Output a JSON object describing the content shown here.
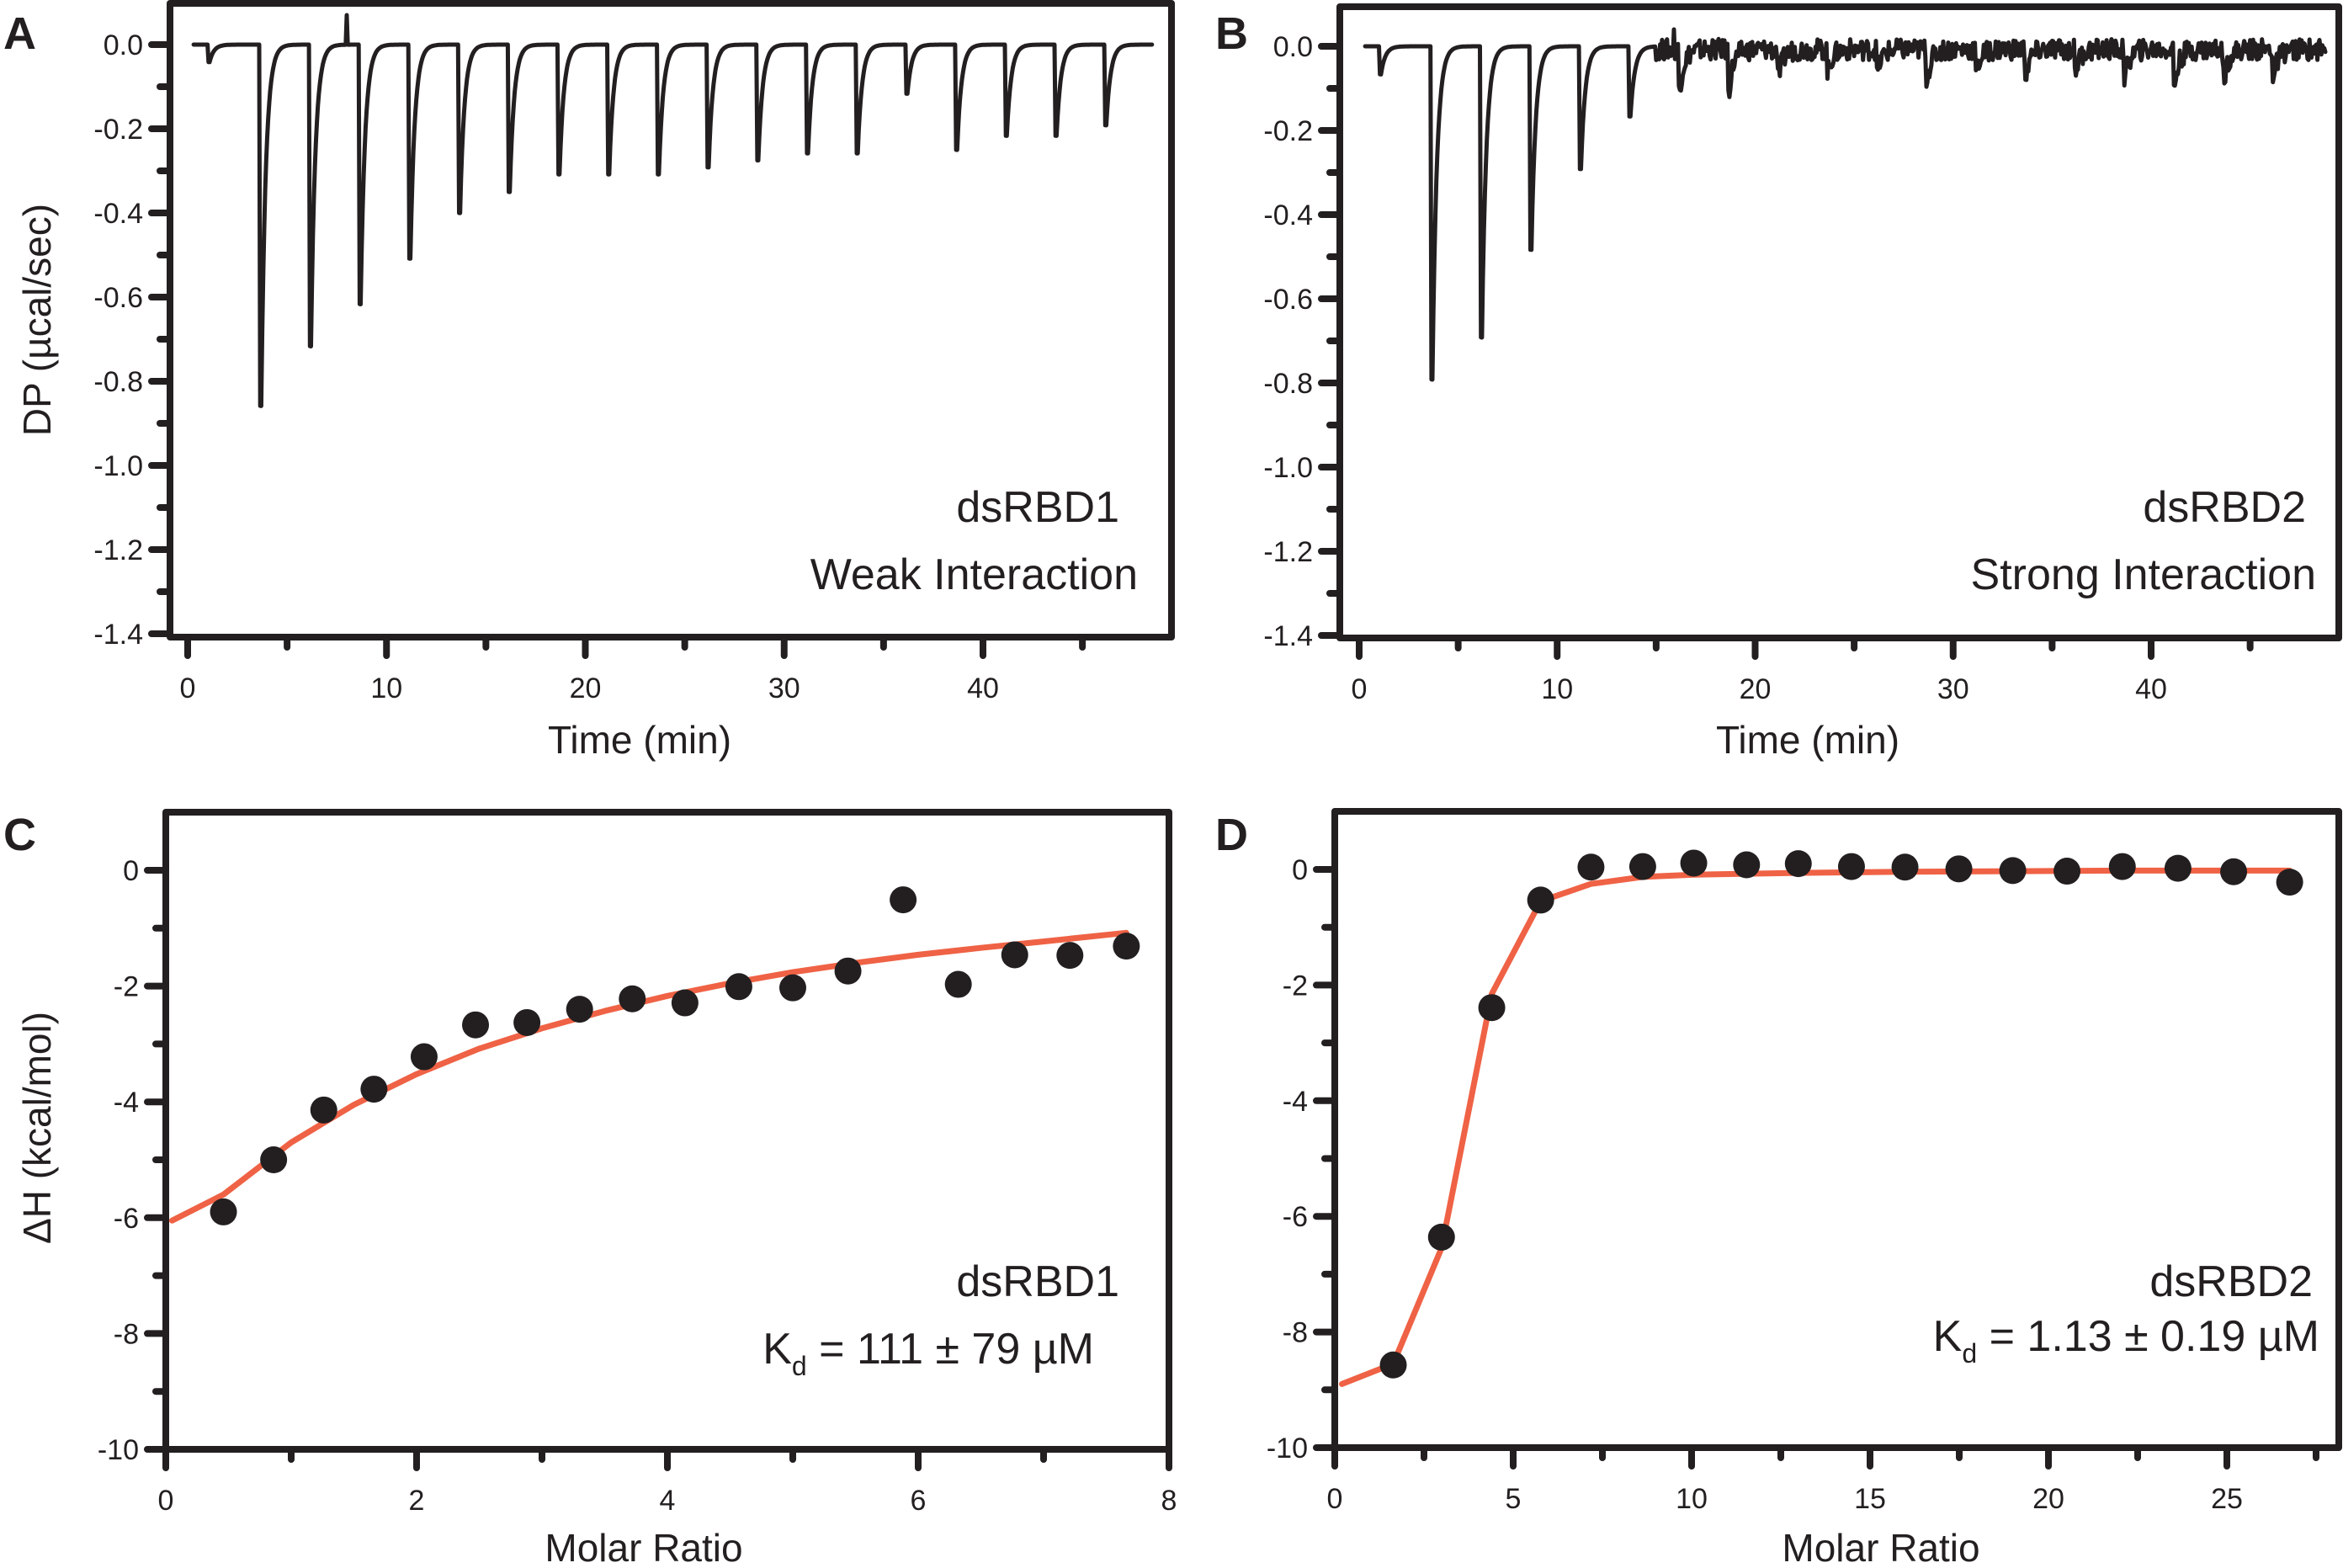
{
  "colors": {
    "trace": "#231F20",
    "fit": "#EF6245",
    "points": "#231F20",
    "frame": "#231F20"
  },
  "chart_data": [
    {
      "panel": "A",
      "type": "line",
      "title": "",
      "xlabel": "Time (min)",
      "ylabel": "DP (µcal/sec)",
      "xlim": [
        -1,
        49
      ],
      "ylim": [
        -1.4,
        0.1
      ],
      "xticks": [
        0,
        10,
        20,
        30,
        40
      ],
      "xtick_labels": [
        "0",
        "10",
        "20",
        "30",
        "40"
      ],
      "xminor": [
        5,
        15,
        25,
        35,
        45
      ],
      "yticks": [
        0.0,
        -0.2,
        -0.4,
        -0.6,
        -0.8,
        -1.0,
        -1.2,
        -1.4
      ],
      "ytick_labels": [
        "0.0",
        "-0.2",
        "-0.4",
        "-0.6",
        "-0.8",
        "-1.0",
        "-1.2",
        "-1.4"
      ],
      "yminor": [
        -0.1,
        -0.3,
        -0.5,
        -0.7,
        -0.9,
        -1.1,
        -1.3
      ],
      "grid": false,
      "annotation": [
        "dsRBD1",
        "Weak Interaction"
      ],
      "trace_start": 0.3,
      "trace_end": 48.5,
      "injections": [
        {
          "t": 1.0,
          "peak": -0.05
        },
        {
          "t": 3.6,
          "peak": -1.03
        },
        {
          "t": 6.1,
          "peak": -0.86
        },
        {
          "t": 8.6,
          "peak": -0.74
        },
        {
          "t": 11.1,
          "peak": -0.61
        },
        {
          "t": 13.6,
          "peak": -0.48
        },
        {
          "t": 16.1,
          "peak": -0.42
        },
        {
          "t": 18.6,
          "peak": -0.37
        },
        {
          "t": 21.1,
          "peak": -0.37
        },
        {
          "t": 23.6,
          "peak": -0.37
        },
        {
          "t": 26.1,
          "peak": -0.35
        },
        {
          "t": 28.6,
          "peak": -0.33
        },
        {
          "t": 31.1,
          "peak": -0.31
        },
        {
          "t": 33.6,
          "peak": -0.31
        },
        {
          "t": 36.1,
          "peak": -0.14
        },
        {
          "t": 38.6,
          "peak": -0.3
        },
        {
          "t": 41.1,
          "peak": -0.26
        },
        {
          "t": 43.6,
          "peak": -0.26
        },
        {
          "t": 46.1,
          "peak": -0.23
        }
      ],
      "spike": {
        "t": 8.0,
        "value": 0.07
      },
      "noise": 0.0
    },
    {
      "panel": "B",
      "type": "line",
      "title": "",
      "xlabel": "Time (min)",
      "ylabel": "",
      "xlim": [
        -1,
        49.5
      ],
      "ylim": [
        -1.4,
        0.1
      ],
      "xticks": [
        0,
        10,
        20,
        30,
        40
      ],
      "xtick_labels": [
        "0",
        "10",
        "20",
        "30",
        "40"
      ],
      "xminor": [
        5,
        15,
        25,
        35,
        45
      ],
      "yticks": [
        0.0,
        -0.2,
        -0.4,
        -0.6,
        -0.8,
        -1.0,
        -1.2,
        -1.4
      ],
      "ytick_labels": [
        "0.0",
        "-0.2",
        "-0.4",
        "-0.6",
        "-0.8",
        "-1.0",
        "-1.2",
        "-1.4"
      ],
      "yminor": [
        -0.1,
        -0.3,
        -0.5,
        -0.7,
        -0.9,
        -1.1,
        -1.3
      ],
      "grid": false,
      "annotation": [
        "dsRBD2",
        "Strong Interaction"
      ],
      "trace_start": 0.3,
      "trace_end": 48.8,
      "injections": [
        {
          "t": 1.0,
          "peak": -0.08
        },
        {
          "t": 3.6,
          "peak": -0.95
        },
        {
          "t": 6.1,
          "peak": -0.83
        },
        {
          "t": 8.6,
          "peak": -0.58
        },
        {
          "t": 11.1,
          "peak": -0.35
        },
        {
          "t": 13.6,
          "peak": -0.2
        },
        {
          "t": 16.1,
          "peak": -0.11
        },
        {
          "t": 18.6,
          "peak": -0.11
        },
        {
          "t": 21.1,
          "peak": -0.08
        },
        {
          "t": 23.6,
          "peak": -0.06
        },
        {
          "t": 26.1,
          "peak": -0.06
        },
        {
          "t": 28.6,
          "peak": -0.08
        },
        {
          "t": 31.1,
          "peak": -0.06
        },
        {
          "t": 33.6,
          "peak": -0.07
        },
        {
          "t": 36.1,
          "peak": -0.06
        },
        {
          "t": 38.6,
          "peak": -0.08
        },
        {
          "t": 41.1,
          "peak": -0.1
        },
        {
          "t": 43.6,
          "peak": -0.08
        },
        {
          "t": 46.1,
          "peak": -0.08
        }
      ],
      "spike": {
        "t": 15.9,
        "value": 0.04
      },
      "noise": 0.025
    },
    {
      "panel": "C",
      "type": "scatter",
      "title": "",
      "xlabel": "Molar Ratio",
      "ylabel": "ΔH (kcal/mol)",
      "xlim": [
        0,
        8
      ],
      "ylim": [
        -10,
        1
      ],
      "xticks": [
        0,
        2,
        4,
        6,
        8
      ],
      "xtick_labels": [
        "0",
        "2",
        "4",
        "6",
        "8"
      ],
      "xminor": [
        1,
        3,
        5,
        7
      ],
      "yticks": [
        0,
        -2,
        -4,
        -6,
        -8,
        -10
      ],
      "ytick_labels": [
        "0",
        "-2",
        "-4",
        "-6",
        "-8",
        "-10"
      ],
      "yminor": [
        -1,
        -3,
        -5,
        -7,
        -9
      ],
      "grid": false,
      "annotation": {
        "line1": "dsRBD1",
        "kd_symbol": "K",
        "kd_sub": "d",
        "kd_value": " = 111 ± 79 µM"
      },
      "series": [
        {
          "name": "data",
          "x": [
            0.46,
            0.86,
            1.26,
            1.66,
            2.06,
            2.47,
            2.88,
            3.3,
            3.72,
            4.14,
            4.57,
            5.0,
            5.44,
            5.88,
            6.32,
            6.77,
            7.21,
            7.66
          ],
          "y": [
            -5.9,
            -5.0,
            -4.14,
            -3.78,
            -3.22,
            -2.67,
            -2.63,
            -2.4,
            -2.22,
            -2.29,
            -2.01,
            -2.03,
            -1.74,
            -0.51,
            -1.97,
            -1.46,
            -1.47,
            -1.31
          ]
        },
        {
          "name": "fit",
          "x": [
            0.05,
            0.46,
            1.0,
            1.5,
            2.0,
            2.5,
            3.0,
            3.5,
            4.0,
            4.5,
            5.0,
            5.5,
            6.0,
            6.5,
            7.0,
            7.66
          ],
          "y": [
            -6.05,
            -5.6,
            -4.7,
            -4.05,
            -3.52,
            -3.08,
            -2.73,
            -2.43,
            -2.17,
            -1.95,
            -1.76,
            -1.6,
            -1.46,
            -1.34,
            -1.23,
            -1.08
          ]
        }
      ]
    },
    {
      "panel": "D",
      "type": "scatter",
      "title": "",
      "xlabel": "Molar Ratio",
      "ylabel": "",
      "xlim": [
        0,
        28
      ],
      "ylim": [
        -10,
        1
      ],
      "xticks": [
        0,
        5,
        10,
        15,
        20,
        25
      ],
      "xtick_labels": [
        "0",
        "5",
        "10",
        "15",
        "20",
        "25"
      ],
      "xminor": [
        2.5,
        7.5,
        12.5,
        17.5,
        22.5,
        27.5
      ],
      "yticks": [
        0,
        -2,
        -4,
        -6,
        -8,
        -10
      ],
      "ytick_labels": [
        "0",
        "-2",
        "-4",
        "-6",
        "-8",
        "-10"
      ],
      "yminor": [
        -1,
        -3,
        -5,
        -7,
        -9
      ],
      "grid": false,
      "annotation": {
        "line1": "dsRBD2",
        "kd_symbol": "K",
        "kd_sub": "d",
        "kd_value": " = 1.13 ± 0.19 µM"
      },
      "series": [
        {
          "name": "data",
          "x": [
            1.64,
            2.99,
            4.4,
            5.77,
            7.18,
            8.63,
            10.06,
            11.54,
            12.99,
            14.48,
            15.98,
            17.49,
            19.0,
            20.52,
            22.07,
            23.63,
            25.19,
            26.76
          ],
          "y": [
            -8.57,
            -6.36,
            -2.39,
            -0.53,
            0.04,
            0.05,
            0.11,
            0.08,
            0.1,
            0.05,
            0.04,
            0.01,
            -0.02,
            -0.03,
            0.05,
            0.02,
            -0.04,
            -0.22
          ]
        },
        {
          "name": "fit",
          "x": [
            0.2,
            1.64,
            2.99,
            4.4,
            5.77,
            7.18,
            8.63,
            10.06,
            12.99,
            15.98,
            19.0,
            22.07,
            25.19,
            26.76
          ],
          "y": [
            -8.9,
            -8.55,
            -6.55,
            -2.15,
            -0.55,
            -0.25,
            -0.13,
            -0.09,
            -0.06,
            -0.04,
            -0.03,
            -0.02,
            -0.02,
            -0.02
          ]
        }
      ]
    }
  ]
}
